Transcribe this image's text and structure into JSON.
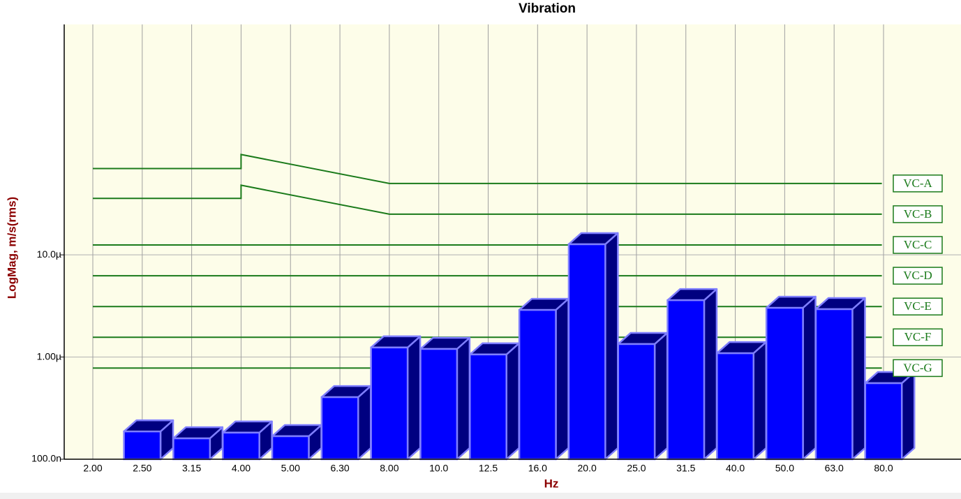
{
  "chart_data": {
    "type": "bar",
    "title": "Vibration",
    "x_label": "Hz",
    "y_label": "LogMag, m/s(rms)",
    "categories": [
      "2.00",
      "2.50",
      "3.15",
      "4.00",
      "5.00",
      "6.30",
      "8.00",
      "10.0",
      "12.5",
      "16.0",
      "20.0",
      "25.0",
      "31.5",
      "40.0",
      "50.0",
      "63.0",
      "80.0"
    ],
    "values": [
      null,
      1.87e-07,
      1.6e-07,
      1.82e-07,
      1.68e-07,
      4.05e-07,
      1.24e-06,
      1.2e-06,
      1.06e-06,
      2.89e-06,
      1.27e-05,
      1.34e-06,
      3.6e-06,
      1.09e-06,
      3.03e-06,
      2.94e-06,
      5.55e-07
    ],
    "color": "#0000ff",
    "log_scale": true,
    "grid": true,
    "ylim": [
      1e-07,
      0.0018
    ],
    "yticks": [
      {
        "value": 1e-07,
        "label": "100.0n"
      },
      {
        "value": 1e-06,
        "label": "1.00µ"
      },
      {
        "value": 1e-05,
        "label": "10.0µ"
      }
    ],
    "series": [
      {
        "name": "VC-A",
        "color": "#1a7a1a",
        "x": [
          2,
          4,
          4,
          8,
          80
        ],
        "values": [
          7e-05,
          7e-05,
          9.6e-05,
          5e-05,
          5e-05
        ]
      },
      {
        "name": "VC-B",
        "color": "#1a7a1a",
        "x": [
          2,
          4,
          4,
          8,
          80
        ],
        "values": [
          3.57e-05,
          3.57e-05,
          4.8e-05,
          2.5e-05,
          2.5e-05
        ]
      },
      {
        "name": "VC-C",
        "color": "#1a7a1a",
        "x": [
          2,
          80
        ],
        "values": [
          1.25e-05,
          1.25e-05
        ]
      },
      {
        "name": "VC-D",
        "color": "#1a7a1a",
        "x": [
          2,
          80
        ],
        "values": [
          6.25e-06,
          6.25e-06
        ]
      },
      {
        "name": "VC-E",
        "color": "#1a7a1a",
        "x": [
          2,
          80
        ],
        "values": [
          3.12e-06,
          3.12e-06
        ]
      },
      {
        "name": "VC-F",
        "color": "#1a7a1a",
        "x": [
          2,
          80
        ],
        "values": [
          1.56e-06,
          1.56e-06
        ]
      },
      {
        "name": "VC-G",
        "color": "#1a7a1a",
        "x": [
          2,
          80
        ],
        "values": [
          7.8e-07,
          7.8e-07
        ]
      }
    ]
  }
}
